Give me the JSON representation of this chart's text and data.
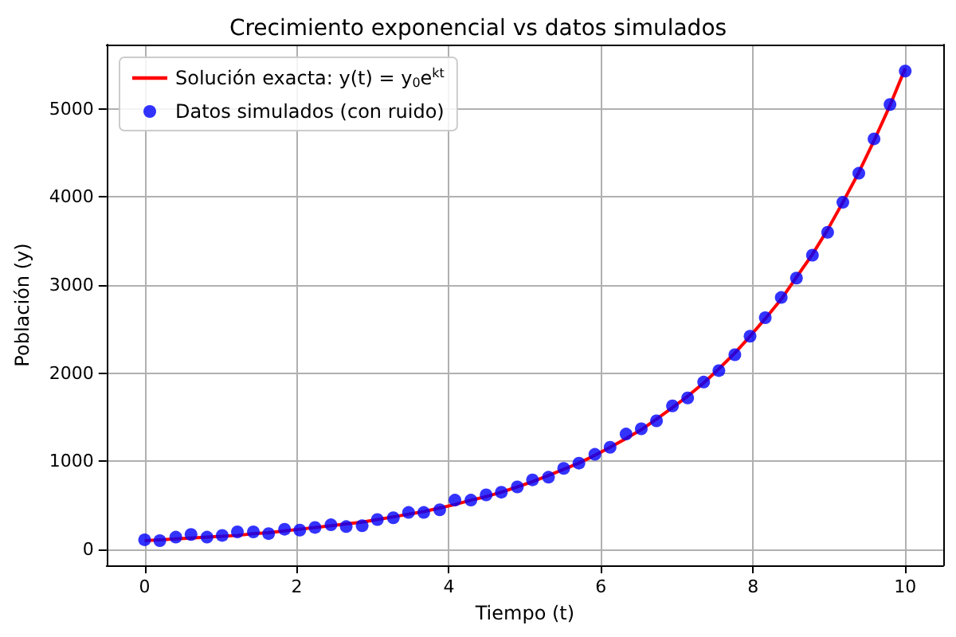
{
  "chart_data": {
    "type": "scatter",
    "title": "Crecimiento exponencial vs datos simulados",
    "xlabel": "Tiempo (t)",
    "ylabel": "Población (y)",
    "x": [
      0,
      0.2,
      0.41,
      0.61,
      0.82,
      1.02,
      1.22,
      1.43,
      1.63,
      1.84,
      2.04,
      2.24,
      2.45,
      2.65,
      2.86,
      3.06,
      3.27,
      3.47,
      3.67,
      3.88,
      4.08,
      4.29,
      4.49,
      4.69,
      4.9,
      5.1,
      5.31,
      5.51,
      5.71,
      5.92,
      6.12,
      6.33,
      6.53,
      6.73,
      6.94,
      7.14,
      7.35,
      7.55,
      7.76,
      7.96,
      8.16,
      8.37,
      8.57,
      8.78,
      8.98,
      9.18,
      9.39,
      9.59,
      9.8,
      10
    ],
    "series": [
      {
        "name": "Solución exacta: y(t) = y$_{0}$e$^{kt}$",
        "type": "line",
        "color": "#ff0000",
        "marker": "none",
        "values": [
          100,
          110,
          120,
          130,
          140,
          150,
          160,
          180,
          190,
          210,
          230,
          250,
          270,
          290,
          310,
          340,
          370,
          400,
          430,
          470,
          510,
          560,
          600,
          650,
          710,
          770,
          840,
          910,
          980,
          1070,
          1160,
          1260,
          1360,
          1480,
          1610,
          1740,
          1890,
          2050,
          2230,
          2420,
          2620,
          2840,
          3090,
          3350,
          3630,
          3940,
          4280,
          4640,
          5040,
          5460
        ]
      },
      {
        "name": "Datos simulados (con ruido)",
        "color": "#0000ff",
        "marker": "circle",
        "values": [
          110,
          100,
          140,
          170,
          140,
          160,
          200,
          200,
          180,
          230,
          220,
          250,
          280,
          260,
          270,
          340,
          360,
          420,
          420,
          450,
          560,
          560,
          620,
          650,
          710,
          790,
          820,
          920,
          980,
          1080,
          1160,
          1310,
          1370,
          1460,
          1630,
          1720,
          1900,
          2030,
          2210,
          2420,
          2630,
          2860,
          3080,
          3340,
          3600,
          3940,
          4270,
          4660,
          5050,
          5430
        ]
      }
    ],
    "xlim": [
      -0.5,
      10.5
    ],
    "xticks": [
      0,
      2,
      4,
      6,
      8,
      10
    ],
    "ylim": [
      -180,
      5730
    ],
    "yticks": [
      0,
      1000,
      2000,
      3000,
      4000,
      5000
    ],
    "grid": true,
    "legend": "top left"
  }
}
